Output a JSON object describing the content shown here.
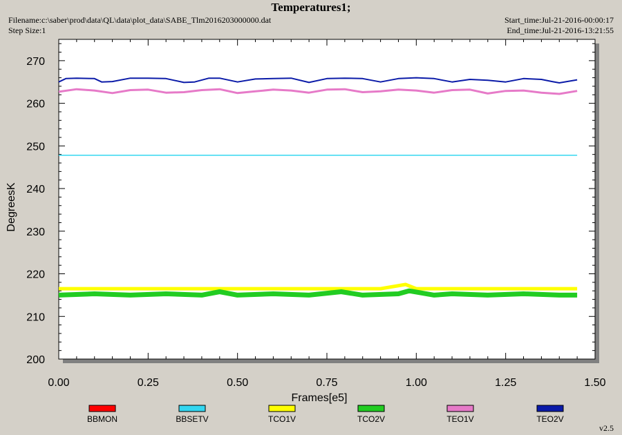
{
  "header": {
    "title": "Temperatures1;",
    "filename": "Filename:c:\\saber\\prod\\data\\QL\\data\\plot_data\\SABE_Tlm2016203000000.dat",
    "step_size": "Step Size:1",
    "start_time": "Start_time:Jul-21-2016-00:00:17",
    "end_time": "End_time:Jul-21-2016-13:21:55"
  },
  "version": "v2.5",
  "colors": {
    "BBMON": "#ff0000",
    "BBSETV": "#33d6f0",
    "TCO1V": "#ffff00",
    "TCO2V": "#22cc22",
    "TEO1V": "#e67ac8",
    "TEO2V": "#0a1aa8"
  },
  "chart_data": {
    "type": "line",
    "xlabel": "Frames[e5]",
    "ylabel": "DegreesK",
    "xlim": [
      0,
      1.5
    ],
    "ylim": [
      200,
      275
    ],
    "xticks": [
      "0.00",
      "0.25",
      "0.50",
      "0.75",
      "1.00",
      "1.25",
      "1.50"
    ],
    "yticks": [
      "200",
      "210",
      "220",
      "230",
      "240",
      "250",
      "260",
      "270"
    ],
    "grid": false,
    "legend_position": "bottom",
    "series": [
      {
        "name": "BBMON",
        "x": [],
        "y": []
      },
      {
        "name": "BBSETV",
        "x": [
          0,
          0.25,
          0.5,
          0.75,
          1.0,
          1.25,
          1.45
        ],
        "y": [
          247.8,
          247.8,
          247.8,
          247.8,
          247.8,
          247.8,
          247.8
        ]
      },
      {
        "name": "TCO1V",
        "x": [
          0,
          0.1,
          0.2,
          0.3,
          0.4,
          0.5,
          0.6,
          0.7,
          0.8,
          0.9,
          0.97,
          1.0,
          1.1,
          1.2,
          1.3,
          1.4,
          1.45
        ],
        "y": [
          216.5,
          216.5,
          216.5,
          216.5,
          216.5,
          216.5,
          216.5,
          216.5,
          216.5,
          216.5,
          217.5,
          216.5,
          216.5,
          216.5,
          216.5,
          216.5,
          216.5
        ]
      },
      {
        "name": "TCO2V",
        "x": [
          0,
          0.1,
          0.2,
          0.3,
          0.4,
          0.45,
          0.5,
          0.6,
          0.7,
          0.79,
          0.85,
          0.95,
          0.98,
          1.05,
          1.1,
          1.2,
          1.3,
          1.4,
          1.45
        ],
        "y": [
          215.0,
          215.3,
          215.0,
          215.3,
          215.0,
          215.8,
          215.0,
          215.3,
          215.0,
          215.8,
          215.0,
          215.3,
          216.0,
          215.0,
          215.3,
          215.0,
          215.3,
          215.0,
          215.0
        ]
      },
      {
        "name": "TEO1V",
        "x": [
          0,
          0.05,
          0.1,
          0.15,
          0.2,
          0.25,
          0.3,
          0.35,
          0.4,
          0.45,
          0.5,
          0.55,
          0.6,
          0.65,
          0.7,
          0.75,
          0.8,
          0.85,
          0.9,
          0.95,
          1.0,
          1.05,
          1.1,
          1.15,
          1.2,
          1.25,
          1.3,
          1.35,
          1.4,
          1.45
        ],
        "y": [
          262.7,
          263.3,
          263.0,
          262.4,
          263.1,
          263.2,
          262.5,
          262.6,
          263.1,
          263.3,
          262.4,
          262.8,
          263.2,
          263.0,
          262.5,
          263.2,
          263.3,
          262.6,
          262.8,
          263.2,
          263.0,
          262.5,
          263.1,
          263.2,
          262.3,
          262.9,
          263.0,
          262.5,
          262.2,
          262.9
        ]
      },
      {
        "name": "TEO2V",
        "x": [
          0,
          0.02,
          0.05,
          0.1,
          0.12,
          0.15,
          0.2,
          0.25,
          0.3,
          0.35,
          0.38,
          0.42,
          0.45,
          0.5,
          0.55,
          0.6,
          0.65,
          0.7,
          0.75,
          0.8,
          0.85,
          0.9,
          0.95,
          1.0,
          1.05,
          1.1,
          1.15,
          1.2,
          1.25,
          1.3,
          1.35,
          1.38,
          1.4,
          1.45
        ],
        "y": [
          265.0,
          265.8,
          265.9,
          265.8,
          265.0,
          265.1,
          265.9,
          265.9,
          265.8,
          264.9,
          265.0,
          265.9,
          265.9,
          265.0,
          265.7,
          265.8,
          265.9,
          264.9,
          265.8,
          265.9,
          265.8,
          265.0,
          265.8,
          266.0,
          265.8,
          265.0,
          265.6,
          265.4,
          265.0,
          265.8,
          265.6,
          265.1,
          264.8,
          265.5
        ]
      }
    ]
  }
}
